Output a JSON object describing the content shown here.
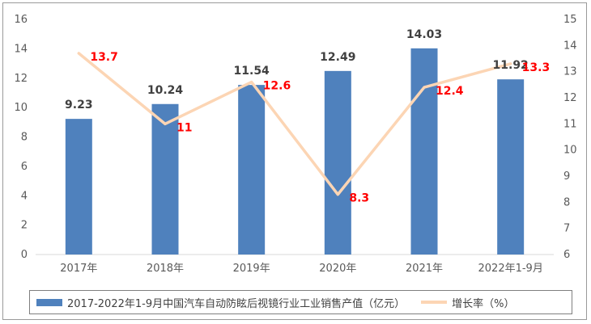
{
  "chart_data": {
    "type": "bar+line",
    "categories": [
      "2017年",
      "2018年",
      "2019年",
      "2020年",
      "2021年",
      "2022年1-9月"
    ],
    "series": [
      {
        "name": "2017-2022年1-9月中国汽车自动防眩后视镜行业工业销售产值（亿元）",
        "type": "bar",
        "axis": "left",
        "color": "#4f81bd",
        "values": [
          9.23,
          10.24,
          11.54,
          12.49,
          14.03,
          11.92
        ],
        "labels": [
          "9.23",
          "10.24",
          "11.54",
          "12.49",
          "14.03",
          "11.92"
        ]
      },
      {
        "name": "增长率（%）",
        "type": "line",
        "axis": "right",
        "color": "#fcd5b4",
        "values": [
          13.7,
          11,
          12.6,
          8.3,
          12.4,
          13.3
        ],
        "labels": [
          "13.7",
          "11",
          "12.6",
          "8.3",
          "12.4",
          "13.3"
        ]
      }
    ],
    "left_axis": {
      "ylim": [
        0,
        16
      ],
      "ticks": [
        "0",
        "2",
        "4",
        "6",
        "8",
        "10",
        "12",
        "14",
        "16"
      ]
    },
    "right_axis": {
      "ylim": [
        6,
        15
      ],
      "ticks": [
        "6",
        "7",
        "8",
        "9",
        "10",
        "11",
        "12",
        "13",
        "14",
        "15"
      ]
    },
    "grid": false,
    "legend": "bottom"
  }
}
